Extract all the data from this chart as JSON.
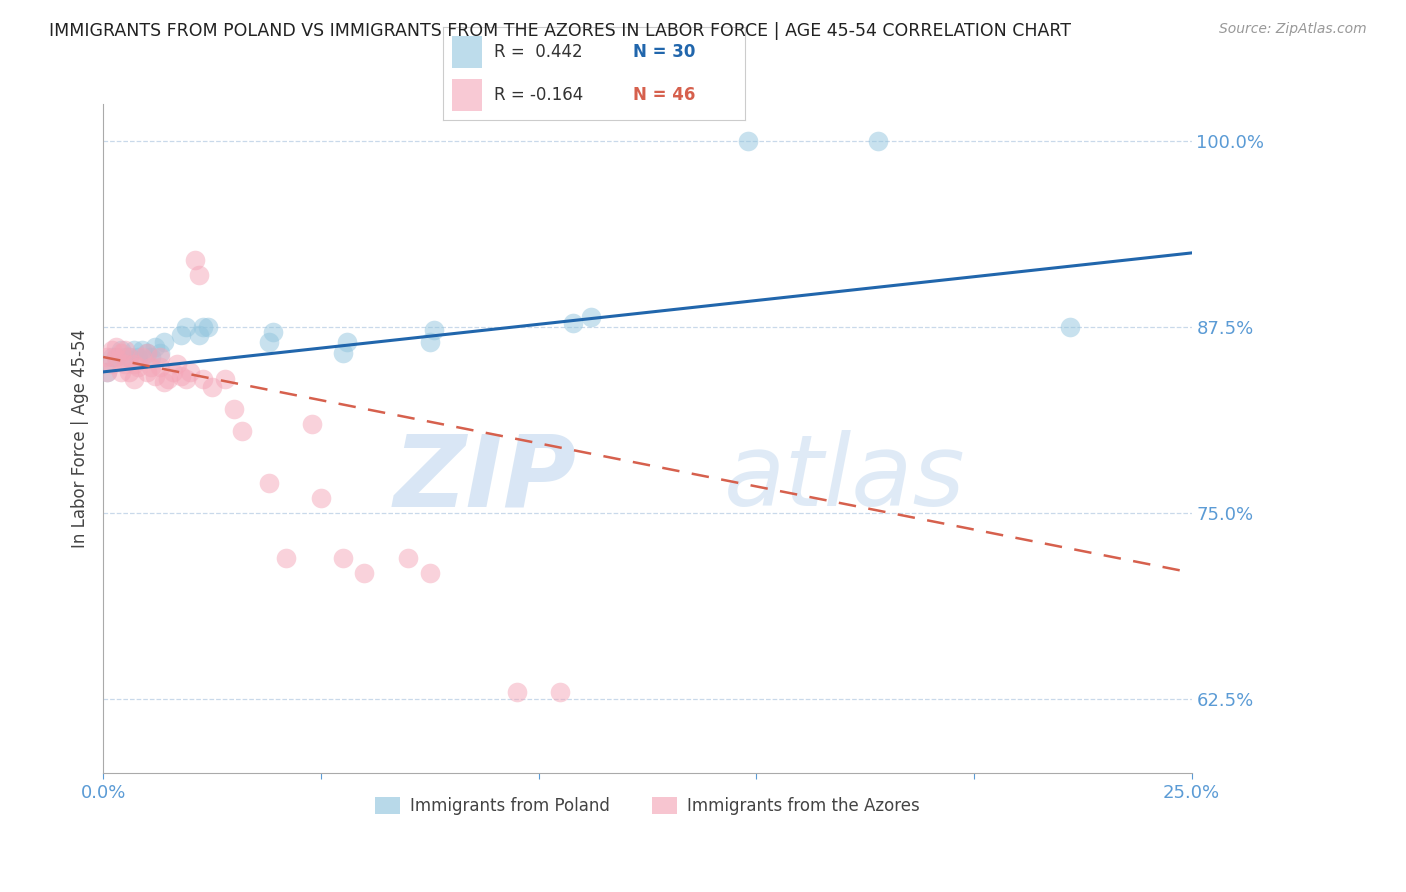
{
  "title": "IMMIGRANTS FROM POLAND VS IMMIGRANTS FROM THE AZORES IN LABOR FORCE | AGE 45-54 CORRELATION CHART",
  "source": "Source: ZipAtlas.com",
  "ylabel": "In Labor Force | Age 45-54",
  "xlim": [
    0.0,
    0.25
  ],
  "ylim": [
    0.575,
    1.025
  ],
  "xticks": [
    0.0,
    0.05,
    0.1,
    0.15,
    0.2,
    0.25
  ],
  "xticklabels": [
    "0.0%",
    "",
    "",
    "",
    "",
    "25.0%"
  ],
  "yticks": [
    0.625,
    0.75,
    0.875,
    1.0
  ],
  "yticklabels": [
    "62.5%",
    "75.0%",
    "87.5%",
    "100.0%"
  ],
  "legend_label1": "Immigrants from Poland",
  "legend_label2": "Immigrants from the Azores",
  "watermark_zip": "ZIP",
  "watermark_atlas": "atlas",
  "blue_color": "#92c5de",
  "pink_color": "#f4a6b8",
  "blue_line_color": "#2166ac",
  "pink_line_color": "#d6604d",
  "axis_color": "#5b9bd5",
  "grid_color": "#c9d9ea",
  "title_color": "#222222",
  "source_color": "#999999",
  "poland_x": [
    0.001,
    0.002,
    0.003,
    0.004,
    0.005,
    0.006,
    0.007,
    0.008,
    0.009,
    0.01,
    0.011,
    0.012,
    0.013,
    0.014,
    0.018,
    0.019,
    0.022,
    0.023,
    0.024,
    0.038,
    0.039,
    0.055,
    0.056,
    0.075,
    0.076,
    0.108,
    0.112,
    0.148,
    0.178,
    0.222
  ],
  "poland_y": [
    0.845,
    0.855,
    0.855,
    0.86,
    0.855,
    0.855,
    0.86,
    0.855,
    0.86,
    0.858,
    0.855,
    0.862,
    0.858,
    0.865,
    0.87,
    0.875,
    0.87,
    0.875,
    0.875,
    0.865,
    0.872,
    0.858,
    0.865,
    0.865,
    0.873,
    0.878,
    0.882,
    1.0,
    1.0,
    0.875
  ],
  "azores_x": [
    0.001,
    0.001,
    0.002,
    0.002,
    0.003,
    0.003,
    0.004,
    0.004,
    0.005,
    0.005,
    0.006,
    0.006,
    0.007,
    0.007,
    0.008,
    0.009,
    0.01,
    0.01,
    0.011,
    0.012,
    0.013,
    0.013,
    0.014,
    0.015,
    0.016,
    0.017,
    0.018,
    0.019,
    0.02,
    0.021,
    0.022,
    0.023,
    0.025,
    0.028,
    0.03,
    0.032,
    0.038,
    0.042,
    0.048,
    0.05,
    0.055,
    0.06,
    0.07,
    0.075,
    0.095,
    0.105
  ],
  "azores_y": [
    0.845,
    0.855,
    0.85,
    0.86,
    0.855,
    0.862,
    0.845,
    0.858,
    0.85,
    0.86,
    0.845,
    0.855,
    0.84,
    0.85,
    0.848,
    0.855,
    0.845,
    0.858,
    0.848,
    0.842,
    0.848,
    0.855,
    0.838,
    0.84,
    0.845,
    0.85,
    0.842,
    0.84,
    0.845,
    0.92,
    0.91,
    0.84,
    0.835,
    0.84,
    0.82,
    0.805,
    0.77,
    0.72,
    0.81,
    0.76,
    0.72,
    0.71,
    0.72,
    0.71,
    0.63,
    0.63
  ]
}
